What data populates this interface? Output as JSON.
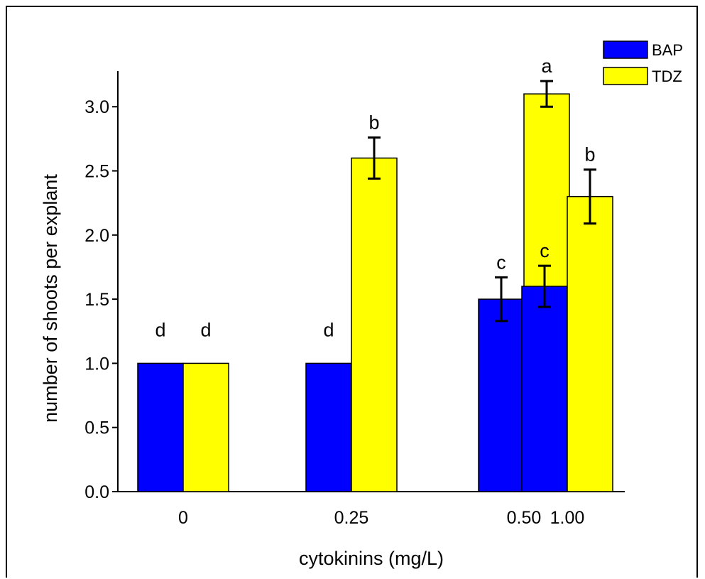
{
  "chart_data": {
    "type": "bar",
    "xlabel": "cytokinins (mg/L)",
    "ylabel": "number of shoots per explant",
    "categories": [
      "0",
      "0.25",
      "0.50",
      "1.00"
    ],
    "ylim": [
      0,
      3.4
    ],
    "yticks": [
      "0.0",
      "0.5",
      "1.0",
      "1.5",
      "2.0",
      "2.5",
      "3.0"
    ],
    "grid": false,
    "legend_position": "top-right",
    "series": [
      {
        "name": "BAP",
        "color": "#0000ff",
        "values": [
          1.0,
          1.0,
          1.5,
          1.6
        ],
        "errors": [
          0,
          0,
          0.17,
          0.16
        ],
        "letters": [
          "d",
          "d",
          "c",
          "c"
        ]
      },
      {
        "name": "TDZ",
        "color": "#ffff00",
        "values": [
          1.0,
          2.6,
          3.1,
          2.3
        ],
        "errors": [
          0,
          0.16,
          0.1,
          0.21
        ],
        "letters": [
          "d",
          "b",
          "a",
          "b"
        ]
      }
    ]
  }
}
